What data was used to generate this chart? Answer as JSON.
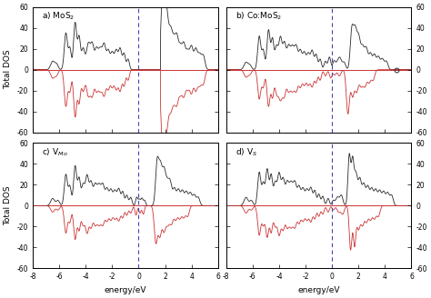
{
  "xlim": [
    -8,
    6
  ],
  "ylim": [
    -60,
    60
  ],
  "yticks": [
    -60,
    -40,
    -20,
    0,
    20,
    40,
    60
  ],
  "xticks": [
    -8,
    -6,
    -4,
    -2,
    0,
    2,
    4,
    6
  ],
  "xlabel": "energy/eV",
  "ylabel": "Total DOS",
  "black_color": "#2a2a2a",
  "red_color": "#cc3333",
  "blue_dashed_color": "#4444bb",
  "zero_line_color": "#cc3333",
  "background": "#ffffff",
  "labels": [
    "a) MoS$_2$",
    "b) Co:MoS$_2$",
    "c) V$_{Mo}$",
    "d) V$_S$"
  ]
}
